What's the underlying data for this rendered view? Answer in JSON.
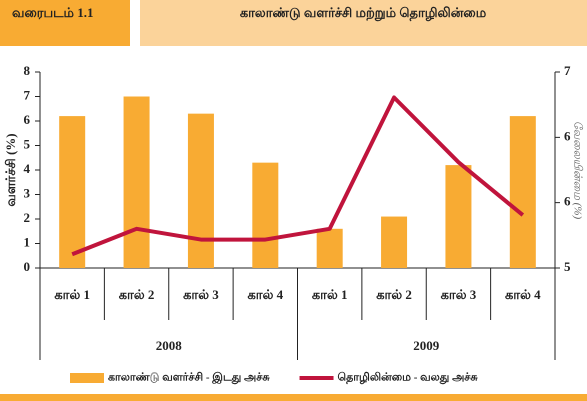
{
  "header": {
    "figure": "வரைபடம் 1.1",
    "title": "காலாண்டு வளர்ச்சி மற்றும் தொழிலின்மை"
  },
  "chart_data": {
    "type": "bar-line",
    "categories": [
      "கால் 1",
      "கால் 2",
      "கால் 3",
      "கால் 4",
      "கால் 1",
      "கால் 2",
      "கால் 3",
      "கால் 4"
    ],
    "groups": [
      "2008",
      "2009"
    ],
    "ylabel": "வளர்ச்சி (%)",
    "y2label": "வேலையின்மை (%)",
    "series": [
      {
        "name": "காலாண்டு வளர்ச்சி - இடது அச்சு",
        "color": "#f8ab33",
        "kind": "bar",
        "values": [
          6.2,
          7.0,
          6.3,
          4.3,
          1.6,
          2.1,
          4.2,
          6.2
        ]
      },
      {
        "name": "தொழிலின்மை - வலது அச்சு",
        "color": "#c0143c",
        "kind": "line",
        "axis": "y2",
        "values": [
          5.14,
          5.4,
          5.29,
          5.29,
          5.4,
          6.74,
          6.08,
          5.54
        ]
      }
    ],
    "ylim": [
      0,
      8
    ],
    "yticks": [
      0,
      1,
      2,
      3,
      4,
      5,
      6,
      7,
      8
    ],
    "y2lim": [
      5,
      7
    ],
    "y2ticks": [
      5,
      {
        "value": 5.667,
        "label": "6"
      },
      {
        "value": 6.333,
        "label": "6"
      },
      7
    ]
  }
}
